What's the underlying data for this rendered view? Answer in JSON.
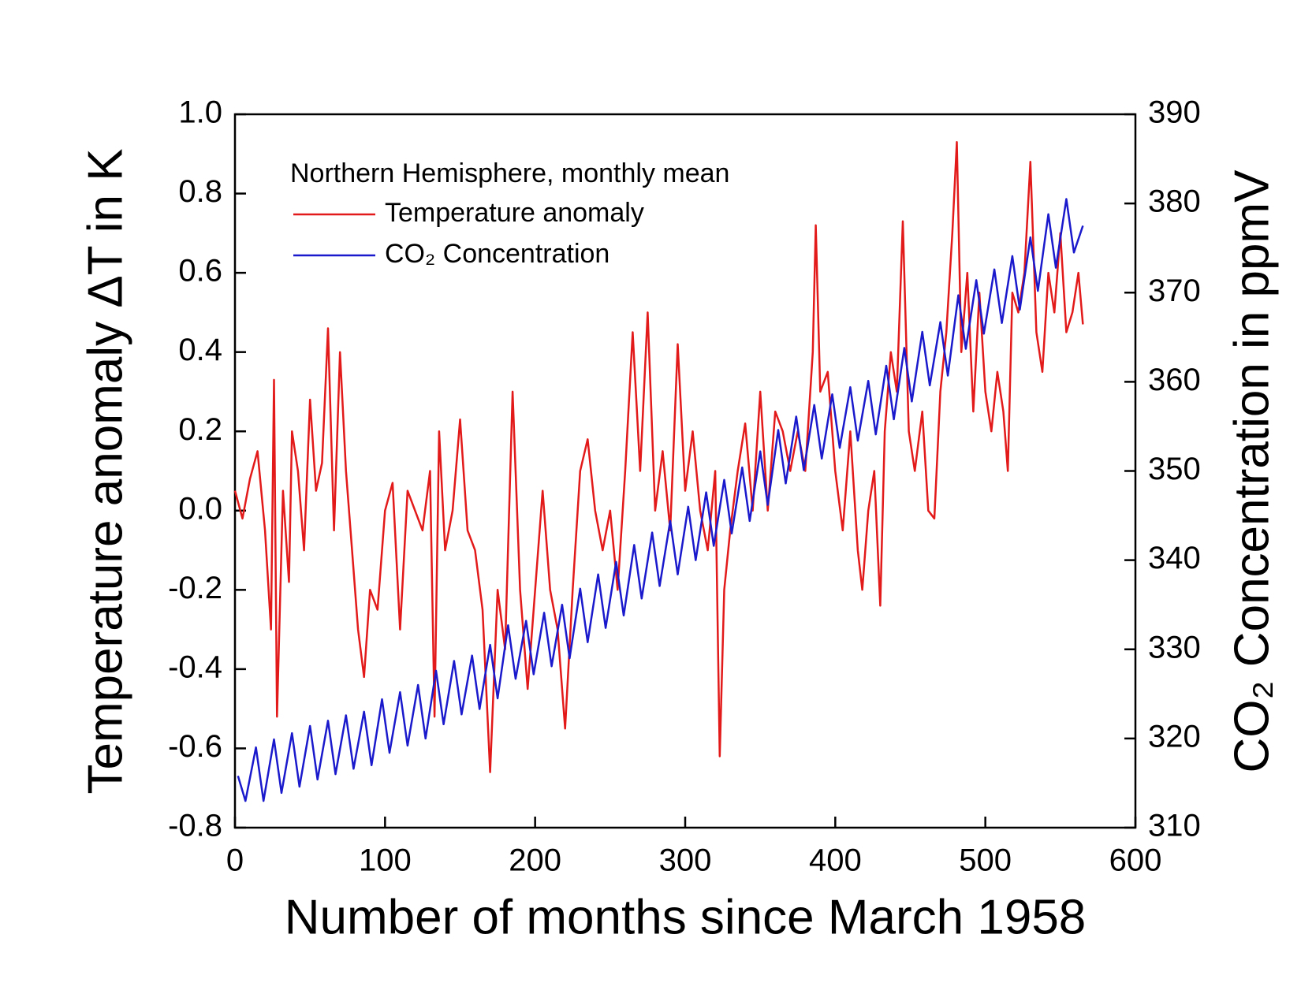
{
  "chart_data": {
    "type": "line",
    "x_label": "Number of months since March 1958",
    "y_label": "Temperature anomaly ΔT in K",
    "y2_label": "CO₂ Concentration in ppmV",
    "legend_title": "Northern Hemisphere, monthly mean",
    "legend": "upper left",
    "xlim": [
      0,
      600
    ],
    "xticks": [
      0,
      100,
      200,
      300,
      400,
      500,
      600
    ],
    "ylim": [
      -0.8,
      1.0
    ],
    "yticks": [
      -0.8,
      -0.6,
      -0.4,
      -0.2,
      {
        "value": 0,
        "label": "0.0"
      },
      0.2,
      0.4,
      0.6,
      0.8,
      {
        "value": 1,
        "label": "1.0"
      }
    ],
    "y2lim": [
      310,
      390
    ],
    "y2ticks": [
      310,
      320,
      330,
      340,
      350,
      360,
      370,
      380,
      390
    ],
    "series": [
      {
        "name": "Temperature anomaly",
        "color": "#e31a1a",
        "axis": "y",
        "x": [
          0,
          5,
          10,
          15,
          20,
          24,
          26,
          28,
          32,
          36,
          38,
          42,
          46,
          50,
          54,
          58,
          62,
          66,
          70,
          74,
          78,
          82,
          86,
          90,
          95,
          100,
          105,
          110,
          115,
          120,
          125,
          130,
          133,
          136,
          140,
          145,
          150,
          155,
          160,
          165,
          170,
          175,
          180,
          185,
          190,
          195,
          200,
          205,
          210,
          215,
          220,
          225,
          230,
          235,
          240,
          245,
          250,
          255,
          260,
          265,
          270,
          275,
          280,
          285,
          290,
          295,
          300,
          305,
          310,
          315,
          320,
          323,
          326,
          330,
          335,
          340,
          345,
          350,
          355,
          360,
          365,
          370,
          375,
          380,
          385,
          387,
          390,
          395,
          400,
          405,
          410,
          415,
          418,
          422,
          426,
          430,
          433,
          437,
          441,
          445,
          449,
          453,
          458,
          462,
          466,
          470,
          474,
          478,
          481,
          484,
          488,
          492,
          496,
          500,
          504,
          508,
          512,
          515,
          518,
          522,
          526,
          530,
          534,
          538,
          542,
          546,
          550,
          554,
          558,
          562,
          565
        ],
        "values": [
          0.05,
          -0.02,
          0.08,
          0.15,
          -0.05,
          -0.3,
          0.33,
          -0.52,
          0.05,
          -0.18,
          0.2,
          0.1,
          -0.1,
          0.28,
          0.05,
          0.12,
          0.46,
          -0.05,
          0.4,
          0.1,
          -0.1,
          -0.3,
          -0.42,
          -0.2,
          -0.25,
          0.0,
          0.07,
          -0.3,
          0.05,
          0.0,
          -0.05,
          0.1,
          -0.52,
          0.2,
          -0.1,
          0.0,
          0.23,
          -0.05,
          -0.1,
          -0.25,
          -0.66,
          -0.2,
          -0.35,
          0.3,
          -0.2,
          -0.45,
          -0.2,
          0.05,
          -0.2,
          -0.3,
          -0.55,
          -0.2,
          0.1,
          0.18,
          0.0,
          -0.1,
          0.0,
          -0.2,
          0.1,
          0.45,
          0.1,
          0.5,
          0.0,
          0.15,
          -0.05,
          0.42,
          0.05,
          0.2,
          0.0,
          -0.1,
          0.1,
          -0.62,
          -0.2,
          -0.05,
          0.1,
          0.22,
          0.0,
          0.3,
          0.0,
          0.25,
          0.2,
          0.1,
          0.2,
          0.1,
          0.4,
          0.72,
          0.3,
          0.35,
          0.1,
          -0.05,
          0.2,
          -0.1,
          -0.2,
          0.0,
          0.1,
          -0.24,
          0.2,
          0.4,
          0.3,
          0.73,
          0.2,
          0.1,
          0.25,
          0.0,
          -0.02,
          0.3,
          0.45,
          0.7,
          0.93,
          0.4,
          0.6,
          0.25,
          0.55,
          0.3,
          0.2,
          0.35,
          0.25,
          0.1,
          0.55,
          0.5,
          0.6,
          0.88,
          0.45,
          0.35,
          0.6,
          0.5,
          0.7,
          0.45,
          0.5,
          0.6,
          0.47
        ]
      },
      {
        "name": "CO₂ Concentration",
        "color": "#1a1acc",
        "axis": "y2",
        "x": [
          2,
          7,
          14,
          19,
          26,
          31,
          38,
          43,
          50,
          55,
          62,
          67,
          74,
          79,
          86,
          91,
          98,
          103,
          110,
          115,
          122,
          127,
          134,
          139,
          146,
          151,
          158,
          163,
          170,
          175,
          182,
          187,
          194,
          199,
          206,
          211,
          218,
          223,
          230,
          235,
          242,
          247,
          254,
          259,
          266,
          271,
          278,
          283,
          290,
          295,
          302,
          307,
          314,
          319,
          326,
          331,
          338,
          343,
          350,
          355,
          362,
          367,
          374,
          379,
          386,
          391,
          398,
          403,
          410,
          415,
          422,
          427,
          434,
          439,
          446,
          451,
          458,
          463,
          470,
          475,
          482,
          487,
          494,
          499,
          506,
          511,
          518,
          523,
          530,
          535,
          542,
          547,
          554,
          559,
          565
        ],
        "values": [
          315.8,
          313.0,
          319.0,
          313.0,
          319.9,
          313.9,
          320.6,
          314.6,
          321.4,
          315.4,
          322.0,
          316.0,
          322.6,
          316.6,
          323.0,
          317.0,
          324.4,
          318.4,
          325.2,
          319.2,
          326.0,
          320.0,
          327.6,
          321.6,
          328.7,
          322.7,
          329.3,
          323.3,
          330.5,
          324.5,
          332.7,
          326.7,
          333.2,
          327.2,
          334.1,
          328.1,
          335.0,
          329.0,
          336.8,
          330.8,
          338.4,
          332.4,
          339.8,
          333.8,
          341.7,
          335.7,
          343.1,
          337.1,
          344.4,
          338.4,
          346.0,
          340.0,
          347.6,
          341.6,
          349.0,
          343.0,
          350.4,
          344.4,
          352.2,
          346.2,
          354.6,
          348.6,
          356.1,
          350.1,
          357.4,
          351.4,
          358.6,
          352.6,
          359.4,
          353.4,
          360.1,
          354.1,
          361.8,
          355.8,
          363.8,
          357.8,
          365.6,
          359.6,
          366.7,
          360.7,
          369.7,
          363.7,
          371.4,
          365.4,
          372.6,
          366.6,
          374.1,
          368.1,
          376.2,
          370.2,
          378.8,
          372.8,
          380.5,
          374.5,
          377.5
        ]
      }
    ]
  }
}
